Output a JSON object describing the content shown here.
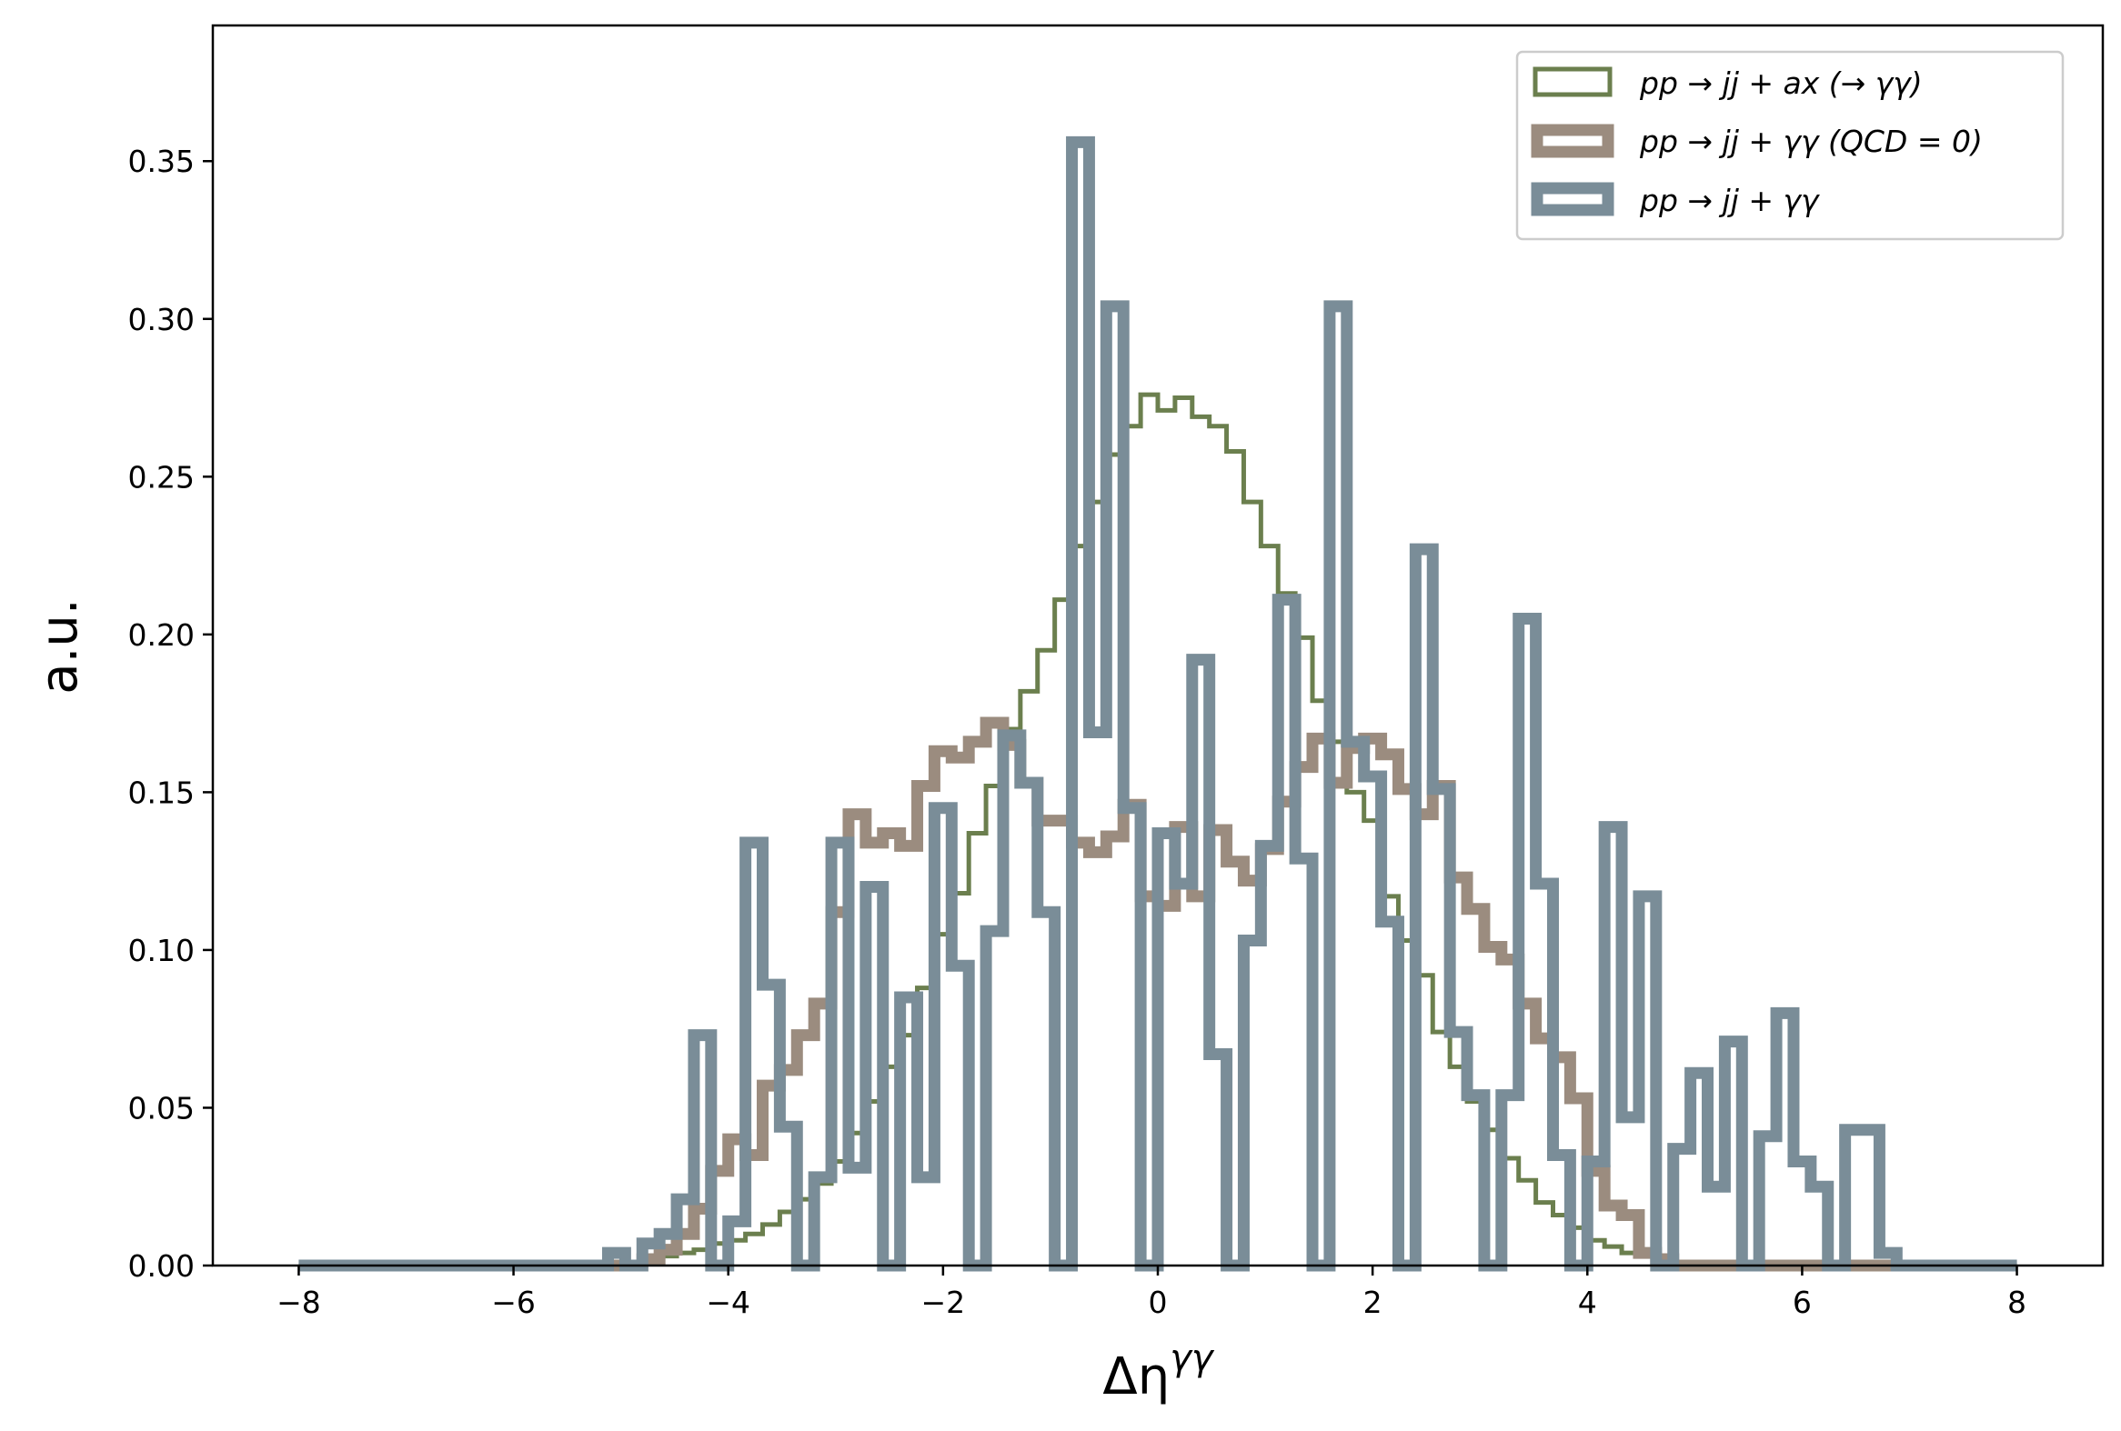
{
  "chart_data": {
    "type": "histogram",
    "xlabel": "Δη^{γγ}",
    "xlabel_main": "Δη",
    "xlabel_sup": "γγ",
    "ylabel": "a.u.",
    "xlim": [
      -8.8,
      8.8
    ],
    "ylim": [
      0,
      0.393
    ],
    "x_ticks": [
      -8,
      -6,
      -4,
      -2,
      0,
      2,
      4,
      6,
      8
    ],
    "x_tick_labels": [
      "−8",
      "−6",
      "−4",
      "−2",
      "0",
      "2",
      "4",
      "6",
      "8"
    ],
    "y_ticks": [
      0,
      0.05,
      0.1,
      0.15,
      0.2,
      0.25,
      0.3,
      0.35
    ],
    "y_tick_labels": [
      "0.00",
      "0.05",
      "0.10",
      "0.15",
      "0.20",
      "0.25",
      "0.30",
      "0.35"
    ],
    "grid": false,
    "legend_position": "top-right",
    "x_range": [
      -8,
      7.84
    ],
    "bin_width": 0.16,
    "series": [
      {
        "name": "pp → jj + ax (→ γγ)",
        "color": "#6b7f4e",
        "linewidth": 5,
        "bins": [
          {
            "x": -4.8,
            "y": 0.002
          },
          {
            "x": -4.64,
            "y": 0.003
          },
          {
            "x": -4.48,
            "y": 0.004
          },
          {
            "x": -4.32,
            "y": 0.005
          },
          {
            "x": -4.16,
            "y": 0.007
          },
          {
            "x": -4.0,
            "y": 0.008
          },
          {
            "x": -3.84,
            "y": 0.01
          },
          {
            "x": -3.68,
            "y": 0.013
          },
          {
            "x": -3.52,
            "y": 0.017
          },
          {
            "x": -3.36,
            "y": 0.021
          },
          {
            "x": -3.2,
            "y": 0.026
          },
          {
            "x": -3.04,
            "y": 0.033
          },
          {
            "x": -2.88,
            "y": 0.042
          },
          {
            "x": -2.72,
            "y": 0.052
          },
          {
            "x": -2.56,
            "y": 0.063
          },
          {
            "x": -2.4,
            "y": 0.073
          },
          {
            "x": -2.24,
            "y": 0.088
          },
          {
            "x": -2.08,
            "y": 0.105
          },
          {
            "x": -1.92,
            "y": 0.118
          },
          {
            "x": -1.76,
            "y": 0.137
          },
          {
            "x": -1.6,
            "y": 0.152
          },
          {
            "x": -1.44,
            "y": 0.17
          },
          {
            "x": -1.28,
            "y": 0.182
          },
          {
            "x": -1.12,
            "y": 0.195
          },
          {
            "x": -0.96,
            "y": 0.211
          },
          {
            "x": -0.8,
            "y": 0.228
          },
          {
            "x": -0.64,
            "y": 0.242
          },
          {
            "x": -0.48,
            "y": 0.257
          },
          {
            "x": -0.32,
            "y": 0.266
          },
          {
            "x": -0.16,
            "y": 0.276
          },
          {
            "x": 0.0,
            "y": 0.271
          },
          {
            "x": 0.16,
            "y": 0.275
          },
          {
            "x": 0.32,
            "y": 0.269
          },
          {
            "x": 0.48,
            "y": 0.266
          },
          {
            "x": 0.64,
            "y": 0.258
          },
          {
            "x": 0.8,
            "y": 0.242
          },
          {
            "x": 0.96,
            "y": 0.228
          },
          {
            "x": 1.12,
            "y": 0.213
          },
          {
            "x": 1.28,
            "y": 0.199
          },
          {
            "x": 1.44,
            "y": 0.179
          },
          {
            "x": 1.6,
            "y": 0.166
          },
          {
            "x": 1.76,
            "y": 0.15
          },
          {
            "x": 1.92,
            "y": 0.141
          },
          {
            "x": 2.08,
            "y": 0.117
          },
          {
            "x": 2.24,
            "y": 0.103
          },
          {
            "x": 2.4,
            "y": 0.092
          },
          {
            "x": 2.56,
            "y": 0.074
          },
          {
            "x": 2.72,
            "y": 0.063
          },
          {
            "x": 2.88,
            "y": 0.052
          },
          {
            "x": 3.04,
            "y": 0.043
          },
          {
            "x": 3.2,
            "y": 0.034
          },
          {
            "x": 3.36,
            "y": 0.027
          },
          {
            "x": 3.52,
            "y": 0.02
          },
          {
            "x": 3.68,
            "y": 0.016
          },
          {
            "x": 3.84,
            "y": 0.012
          },
          {
            "x": 4.0,
            "y": 0.008
          },
          {
            "x": 4.16,
            "y": 0.006
          },
          {
            "x": 4.32,
            "y": 0.004
          },
          {
            "x": 4.48,
            "y": 0.003
          },
          {
            "x": 4.64,
            "y": 0.002
          }
        ]
      },
      {
        "name": "pp → jj + γγ (QCD = 0)",
        "color": "#9b8c7f",
        "linewidth": 13,
        "bins": [
          {
            "x": -4.8,
            "y": 0.002
          },
          {
            "x": -4.64,
            "y": 0.005
          },
          {
            "x": -4.48,
            "y": 0.01
          },
          {
            "x": -4.32,
            "y": 0.018
          },
          {
            "x": -4.16,
            "y": 0.03
          },
          {
            "x": -4.0,
            "y": 0.04
          },
          {
            "x": -3.84,
            "y": 0.035
          },
          {
            "x": -3.68,
            "y": 0.057
          },
          {
            "x": -3.52,
            "y": 0.062
          },
          {
            "x": -3.36,
            "y": 0.073
          },
          {
            "x": -3.2,
            "y": 0.083
          },
          {
            "x": -3.04,
            "y": 0.112
          },
          {
            "x": -2.88,
            "y": 0.143
          },
          {
            "x": -2.72,
            "y": 0.134
          },
          {
            "x": -2.56,
            "y": 0.137
          },
          {
            "x": -2.4,
            "y": 0.133
          },
          {
            "x": -2.24,
            "y": 0.152
          },
          {
            "x": -2.08,
            "y": 0.163
          },
          {
            "x": -1.92,
            "y": 0.161
          },
          {
            "x": -1.76,
            "y": 0.166
          },
          {
            "x": -1.6,
            "y": 0.172
          },
          {
            "x": -1.44,
            "y": 0.165
          },
          {
            "x": -1.28,
            "y": 0.153
          },
          {
            "x": -1.12,
            "y": 0.141
          },
          {
            "x": -0.96,
            "y": 0.141
          },
          {
            "x": -0.8,
            "y": 0.134
          },
          {
            "x": -0.64,
            "y": 0.131
          },
          {
            "x": -0.48,
            "y": 0.136
          },
          {
            "x": -0.32,
            "y": 0.146
          },
          {
            "x": -0.16,
            "y": 0.117
          },
          {
            "x": 0.0,
            "y": 0.114
          },
          {
            "x": 0.16,
            "y": 0.139
          },
          {
            "x": 0.32,
            "y": 0.117
          },
          {
            "x": 0.48,
            "y": 0.138
          },
          {
            "x": 0.64,
            "y": 0.128
          },
          {
            "x": 0.8,
            "y": 0.122
          },
          {
            "x": 0.96,
            "y": 0.132
          },
          {
            "x": 1.12,
            "y": 0.147
          },
          {
            "x": 1.28,
            "y": 0.158
          },
          {
            "x": 1.44,
            "y": 0.167
          },
          {
            "x": 1.6,
            "y": 0.153
          },
          {
            "x": 1.76,
            "y": 0.164
          },
          {
            "x": 1.92,
            "y": 0.167
          },
          {
            "x": 2.08,
            "y": 0.162
          },
          {
            "x": 2.24,
            "y": 0.151
          },
          {
            "x": 2.4,
            "y": 0.143
          },
          {
            "x": 2.56,
            "y": 0.152
          },
          {
            "x": 2.72,
            "y": 0.123
          },
          {
            "x": 2.88,
            "y": 0.113
          },
          {
            "x": 3.04,
            "y": 0.101
          },
          {
            "x": 3.2,
            "y": 0.097
          },
          {
            "x": 3.36,
            "y": 0.083
          },
          {
            "x": 3.52,
            "y": 0.072
          },
          {
            "x": 3.68,
            "y": 0.066
          },
          {
            "x": 3.84,
            "y": 0.053
          },
          {
            "x": 4.0,
            "y": 0.03
          },
          {
            "x": 4.16,
            "y": 0.019
          },
          {
            "x": 4.32,
            "y": 0.016
          },
          {
            "x": 4.48,
            "y": 0.004
          },
          {
            "x": 4.64,
            "y": 0.002
          }
        ]
      },
      {
        "name": "pp → jj + γγ",
        "color": "#7a8d98",
        "linewidth": 13,
        "bins": [
          {
            "x": -5.0,
            "y": 0.004
          },
          {
            "x": -4.8,
            "y": 0.007
          },
          {
            "x": -4.6,
            "y": 0.01
          },
          {
            "x": -4.4,
            "y": 0.021
          },
          {
            "x": -4.2,
            "y": 0.073
          },
          {
            "x": -4.0,
            "y": 0.014
          },
          {
            "x": -3.8,
            "y": 0.134
          },
          {
            "x": -3.6,
            "y": 0.089
          },
          {
            "x": -3.4,
            "y": 0.044
          },
          {
            "x": -3.2,
            "y": 0.028
          },
          {
            "x": -3.0,
            "y": 0.134
          },
          {
            "x": -2.8,
            "y": 0.031
          },
          {
            "x": -2.6,
            "y": 0.12
          },
          {
            "x": -2.4,
            "y": 0.085
          },
          {
            "x": -2.2,
            "y": 0.028
          },
          {
            "x": -2.0,
            "y": 0.145
          },
          {
            "x": -1.8,
            "y": 0.095
          },
          {
            "x": -1.6,
            "y": 0.106
          },
          {
            "x": -1.4,
            "y": 0.168
          },
          {
            "x": -1.2,
            "y": 0.153
          },
          {
            "x": -1.0,
            "y": 0.112
          },
          {
            "x": -0.8,
            "y": 0.356
          },
          {
            "x": -0.6,
            "y": 0.169
          },
          {
            "x": -0.4,
            "y": 0.304
          },
          {
            "x": -0.2,
            "y": 0.145
          },
          {
            "x": 0.0,
            "y": 0.137
          },
          {
            "x": 0.2,
            "y": 0.121
          },
          {
            "x": 0.4,
            "y": 0.192
          },
          {
            "x": 0.6,
            "y": 0.067
          },
          {
            "x": 0.8,
            "y": 0.103
          },
          {
            "x": 1.0,
            "y": 0.133
          },
          {
            "x": 1.2,
            "y": 0.211
          },
          {
            "x": 1.4,
            "y": 0.129
          },
          {
            "x": 1.6,
            "y": 0.304
          },
          {
            "x": 1.8,
            "y": 0.166
          },
          {
            "x": 2.0,
            "y": 0.155
          },
          {
            "x": 2.2,
            "y": 0.109
          },
          {
            "x": 2.4,
            "y": 0.227
          },
          {
            "x": 2.6,
            "y": 0.151
          },
          {
            "x": 2.8,
            "y": 0.074
          },
          {
            "x": 3.0,
            "y": 0.054
          },
          {
            "x": 3.2,
            "y": 0.054
          },
          {
            "x": 3.4,
            "y": 0.205
          },
          {
            "x": 3.6,
            "y": 0.121
          },
          {
            "x": 3.8,
            "y": 0.035
          },
          {
            "x": 4.0,
            "y": 0.033
          },
          {
            "x": 4.2,
            "y": 0.139
          },
          {
            "x": 4.4,
            "y": 0.047
          },
          {
            "x": 4.6,
            "y": 0.117
          },
          {
            "x": 4.8,
            "y": 0.037
          },
          {
            "x": 5.0,
            "y": 0.061
          },
          {
            "x": 5.2,
            "y": 0.025
          },
          {
            "x": 5.4,
            "y": 0.071
          },
          {
            "x": 5.6,
            "y": 0.041
          },
          {
            "x": 5.8,
            "y": 0.08
          },
          {
            "x": 6.0,
            "y": 0.033
          },
          {
            "x": 6.2,
            "y": 0.025
          },
          {
            "x": 6.4,
            "y": 0.043
          },
          {
            "x": 6.6,
            "y": 0.043
          },
          {
            "x": 6.8,
            "y": 0.004
          }
        ]
      }
    ]
  }
}
